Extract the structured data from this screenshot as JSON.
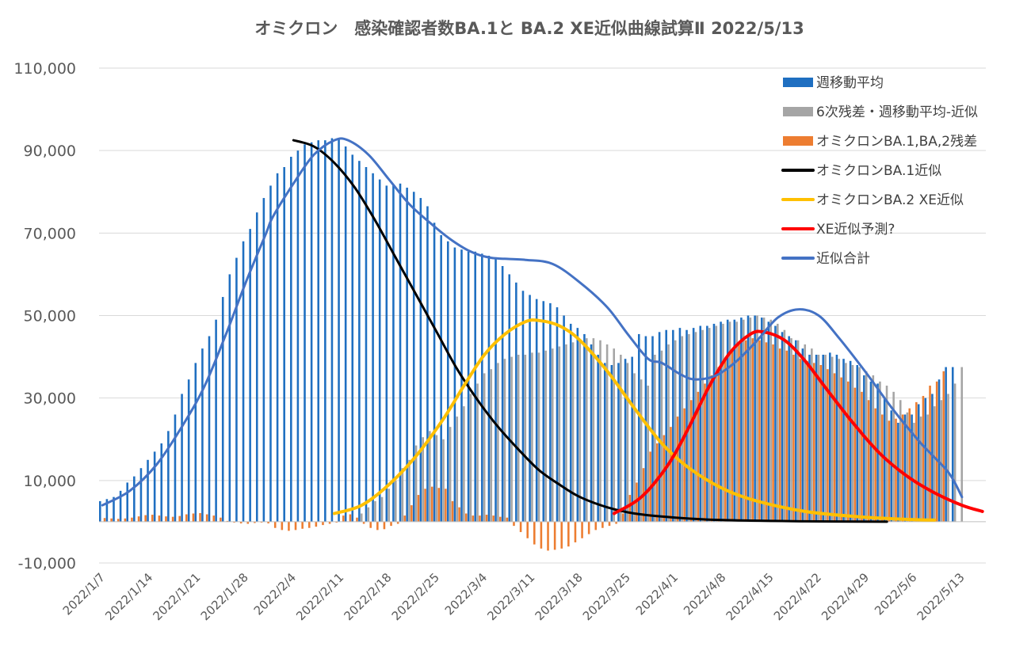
{
  "chart_data": {
    "type": "bar",
    "title": "オミクロン　感染確認者数BA.1と BA.2 XE近似曲線試算Ⅱ 2022/5/13",
    "ylim": [
      -10000,
      110000
    ],
    "yticks": [
      -10000,
      10000,
      30000,
      50000,
      70000,
      90000,
      110000
    ],
    "ytick_labels": [
      "-10,000",
      "10,000",
      "30,000",
      "50,000",
      "70,000",
      "90,000",
      "110,000"
    ],
    "x_start": "2022/1/7",
    "x_end": "2022/5/16",
    "xtick_labels": [
      "2022/1/7",
      "2022/1/14",
      "2022/1/21",
      "2022/1/28",
      "2022/2/4",
      "2022/2/11",
      "2022/2/18",
      "2022/2/25",
      "2022/3/4",
      "2022/3/11",
      "2022/3/18",
      "2022/3/25",
      "2022/4/1",
      "2022/4/8",
      "2022/4/15",
      "2022/4/22",
      "2022/4/29",
      "2022/5/6",
      "2022/5/13"
    ],
    "grid": true,
    "legend_position": "top-right",
    "colors": {
      "weekly_avg": "#1f6fc1",
      "residual6": "#a5a5a5",
      "ba_residual": "#ed7d31",
      "ba1_fit": "#000000",
      "ba2_fit": "#ffc000",
      "xe_pred": "#ff0000",
      "total_fit": "#4472c4"
    },
    "series": [
      {
        "name": "週移動平均",
        "kind": "bar",
        "start": "2022/1/7",
        "values": [
          5000,
          5500,
          6000,
          7500,
          9500,
          11000,
          13000,
          15000,
          17000,
          19000,
          22000,
          26000,
          31000,
          34500,
          38500,
          42000,
          45000,
          49000,
          54500,
          60000,
          64000,
          68000,
          71000,
          75000,
          78500,
          81500,
          84500,
          86000,
          88500,
          90000,
          91500,
          92000,
          92500,
          92500,
          93000,
          93000,
          91000,
          89000,
          87500,
          86000,
          84500,
          83000,
          81500,
          81500,
          82000,
          81000,
          80000,
          78500,
          76500,
          72500,
          69500,
          68000,
          66500,
          66000,
          65500,
          65500,
          65000,
          64500,
          64000,
          62000,
          60000,
          58000,
          56000,
          55000,
          54000,
          53500,
          53000,
          52000,
          50000,
          48000,
          47000,
          45500,
          43000,
          40500,
          38500,
          38000,
          38500,
          39500,
          40000,
          45500,
          45000,
          45000,
          46000,
          46500,
          46500,
          47000,
          46500,
          47000,
          47500,
          47500,
          48000,
          48500,
          49000,
          49000,
          49500,
          50000,
          50000,
          49500,
          48500,
          47500,
          46000,
          45000,
          44000,
          42000,
          40500,
          40500,
          40500,
          41000,
          40500,
          39500,
          39000,
          38000,
          35500,
          34000,
          33500,
          30000,
          27000,
          24000,
          26000,
          26000,
          28500,
          30000,
          31000,
          34500,
          37500,
          37500
        ]
      },
      {
        "name": "6次残差・週移動平均-近似",
        "kind": "bar",
        "start": "2022/2/14",
        "values": [
          2000,
          3500,
          5000,
          6000,
          8000,
          10000,
          13000,
          15000,
          18500,
          20500,
          22000,
          21000,
          20000,
          23000,
          25500,
          28000,
          31000,
          33500,
          36000,
          37000,
          38500,
          39500,
          40000,
          40500,
          40500,
          41000,
          41000,
          41500,
          42000,
          42500,
          43000,
          43500,
          44000,
          44500,
          44500,
          44000,
          43000,
          42000,
          40500,
          38500,
          36000,
          34500,
          33000,
          40500,
          41500,
          43000,
          44000,
          45000,
          45500,
          46000,
          46500,
          47000,
          47500,
          48000,
          48500,
          48500,
          49000,
          49500,
          50000,
          49500,
          49000,
          48000,
          46500,
          44500,
          44000,
          43000,
          42000,
          40500,
          40500,
          40000,
          39500,
          38500,
          38000,
          37500,
          36500,
          35500,
          34000,
          33000,
          31500,
          29500,
          26500,
          24000,
          25500,
          26000,
          28000,
          29500,
          31000,
          33500,
          37500
        ]
      },
      {
        "name": "オミクロンBA.1,BA,2残差",
        "kind": "bar",
        "start": "2022/1/7",
        "values": [
          900,
          800,
          700,
          800,
          1000,
          1300,
          1600,
          1700,
          1500,
          1300,
          1200,
          1400,
          1800,
          2000,
          2100,
          1800,
          1500,
          1000,
          200,
          -200,
          -400,
          -500,
          -300,
          -200,
          -400,
          -1500,
          -2000,
          -2200,
          -2000,
          -1700,
          -1500,
          -1200,
          -800,
          -500,
          -200,
          1500,
          1800,
          1000,
          -500,
          -1500,
          -2000,
          -1800,
          -1000,
          -500,
          1500,
          4000,
          6500,
          8000,
          8500,
          8200,
          8000,
          5000,
          3500,
          2000,
          1500,
          1500,
          1700,
          1500,
          1200,
          1000,
          -1000,
          -2500,
          -4000,
          -5500,
          -6500,
          -7000,
          -6800,
          -6500,
          -6000,
          -5000,
          -4000,
          -3000,
          -2000,
          -1500,
          -1000,
          -500,
          2000,
          6500,
          9500,
          13000,
          17000,
          19000,
          21000,
          23000,
          25500,
          27500,
          29500,
          31500,
          33500,
          35500,
          37500,
          39500,
          41500,
          43000,
          44000,
          44500,
          44000,
          43500,
          43000,
          42000,
          41500,
          40500,
          39500,
          39000,
          38500,
          38000,
          37000,
          36000,
          35000,
          34000,
          32500,
          31500,
          29500,
          27500,
          26000,
          24500,
          25000,
          26000,
          27500,
          29000,
          30500,
          33000,
          34000,
          36500
        ]
      },
      {
        "name": "オミクロンBA.1近似",
        "kind": "line",
        "points": [
          [
            "2022/2/4",
            92500
          ],
          [
            "2022/2/7",
            91000
          ],
          [
            "2022/2/10",
            87000
          ],
          [
            "2022/2/13",
            81000
          ],
          [
            "2022/2/16",
            73000
          ],
          [
            "2022/2/19",
            64000
          ],
          [
            "2022/2/22",
            55000
          ],
          [
            "2022/2/25",
            46000
          ],
          [
            "2022/2/28",
            37000
          ],
          [
            "2022/3/3",
            29500
          ],
          [
            "2022/3/6",
            23000
          ],
          [
            "2022/3/9",
            17500
          ],
          [
            "2022/3/12",
            12500
          ],
          [
            "2022/3/15",
            9000
          ],
          [
            "2022/3/18",
            6000
          ],
          [
            "2022/3/22",
            3500
          ],
          [
            "2022/3/26",
            2000
          ],
          [
            "2022/4/1",
            1000
          ],
          [
            "2022/4/8",
            400
          ],
          [
            "2022/4/20",
            100
          ],
          [
            "2022/5/2",
            0
          ]
        ]
      },
      {
        "name": "オミクロンBA.2 XE近似",
        "kind": "line",
        "points": [
          [
            "2022/2/10",
            2000
          ],
          [
            "2022/2/14",
            4000
          ],
          [
            "2022/2/18",
            9000
          ],
          [
            "2022/2/22",
            16000
          ],
          [
            "2022/2/26",
            25000
          ],
          [
            "2022/3/1",
            33000
          ],
          [
            "2022/3/4",
            40500
          ],
          [
            "2022/3/7",
            45500
          ],
          [
            "2022/3/10",
            48500
          ],
          [
            "2022/3/12",
            48800
          ],
          [
            "2022/3/15",
            47500
          ],
          [
            "2022/3/18",
            44000
          ],
          [
            "2022/3/22",
            36500
          ],
          [
            "2022/3/26",
            27500
          ],
          [
            "2022/3/30",
            19000
          ],
          [
            "2022/4/3",
            13000
          ],
          [
            "2022/4/8",
            8000
          ],
          [
            "2022/4/13",
            5000
          ],
          [
            "2022/4/20",
            2500
          ],
          [
            "2022/4/28",
            1200
          ],
          [
            "2022/5/6",
            500
          ],
          [
            "2022/5/9",
            400
          ]
        ]
      },
      {
        "name": "XE近似予測?",
        "kind": "line",
        "points": [
          [
            "2022/3/23",
            2000
          ],
          [
            "2022/3/27",
            6000
          ],
          [
            "2022/3/31",
            14000
          ],
          [
            "2022/4/3",
            23000
          ],
          [
            "2022/4/6",
            33000
          ],
          [
            "2022/4/9",
            41000
          ],
          [
            "2022/4/12",
            45500
          ],
          [
            "2022/4/14",
            46000
          ],
          [
            "2022/4/17",
            44000
          ],
          [
            "2022/4/20",
            39000
          ],
          [
            "2022/4/23",
            32500
          ],
          [
            "2022/4/27",
            24000
          ],
          [
            "2022/5/1",
            16500
          ],
          [
            "2022/5/5",
            11000
          ],
          [
            "2022/5/9",
            7000
          ],
          [
            "2022/5/13",
            4000
          ],
          [
            "2022/5/16",
            2500
          ]
        ]
      },
      {
        "name": "近似合計",
        "kind": "line",
        "points": [
          [
            "2022/1/7",
            4000
          ],
          [
            "2022/1/11",
            7500
          ],
          [
            "2022/1/15",
            14000
          ],
          [
            "2022/1/19",
            24000
          ],
          [
            "2022/1/22",
            33000
          ],
          [
            "2022/1/25",
            45000
          ],
          [
            "2022/1/28",
            58000
          ],
          [
            "2022/1/31",
            70000
          ],
          [
            "2022/2/1",
            74000
          ],
          [
            "2022/2/4",
            82000
          ],
          [
            "2022/2/7",
            89000
          ],
          [
            "2022/2/10",
            92500
          ],
          [
            "2022/2/12",
            92500
          ],
          [
            "2022/2/15",
            89000
          ],
          [
            "2022/2/18",
            83000
          ],
          [
            "2022/2/21",
            77000
          ],
          [
            "2022/2/24",
            72500
          ],
          [
            "2022/2/27",
            68500
          ],
          [
            "2022/3/2",
            65500
          ],
          [
            "2022/3/5",
            64000
          ],
          [
            "2022/3/10",
            63500
          ],
          [
            "2022/3/14",
            62500
          ],
          [
            "2022/3/18",
            58000
          ],
          [
            "2022/3/22",
            52000
          ],
          [
            "2022/3/25",
            45500
          ],
          [
            "2022/3/28",
            39500
          ],
          [
            "2022/3/30",
            38500
          ],
          [
            "2022/4/2",
            35500
          ],
          [
            "2022/4/4",
            34500
          ],
          [
            "2022/4/7",
            35500
          ],
          [
            "2022/4/10",
            39000
          ],
          [
            "2022/4/13",
            44000
          ],
          [
            "2022/4/16",
            49500
          ],
          [
            "2022/4/19",
            51500
          ],
          [
            "2022/4/22",
            50000
          ],
          [
            "2022/4/25",
            44500
          ],
          [
            "2022/4/29",
            36000
          ],
          [
            "2022/5/3",
            27000
          ],
          [
            "2022/5/7",
            19000
          ],
          [
            "2022/5/11",
            12000
          ],
          [
            "2022/5/13",
            6000
          ]
        ]
      }
    ]
  }
}
